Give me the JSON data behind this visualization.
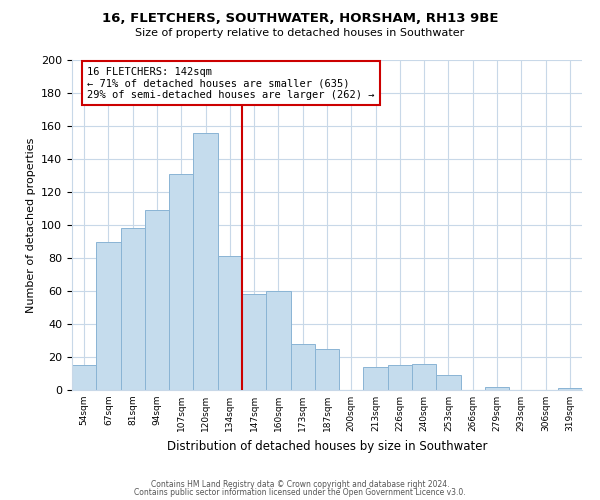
{
  "title": "16, FLETCHERS, SOUTHWATER, HORSHAM, RH13 9BE",
  "subtitle": "Size of property relative to detached houses in Southwater",
  "xlabel": "Distribution of detached houses by size in Southwater",
  "ylabel": "Number of detached properties",
  "bar_labels": [
    "54sqm",
    "67sqm",
    "81sqm",
    "94sqm",
    "107sqm",
    "120sqm",
    "134sqm",
    "147sqm",
    "160sqm",
    "173sqm",
    "187sqm",
    "200sqm",
    "213sqm",
    "226sqm",
    "240sqm",
    "253sqm",
    "266sqm",
    "279sqm",
    "293sqm",
    "306sqm",
    "319sqm"
  ],
  "bar_heights": [
    15,
    90,
    98,
    109,
    131,
    156,
    81,
    58,
    60,
    28,
    25,
    0,
    14,
    15,
    16,
    9,
    0,
    2,
    0,
    0,
    1
  ],
  "bar_color": "#c5dced",
  "bar_edge_color": "#8ab4d4",
  "vline_color": "#cc0000",
  "annotation_title": "16 FLETCHERS: 142sqm",
  "annotation_line1": "← 71% of detached houses are smaller (635)",
  "annotation_line2": "29% of semi-detached houses are larger (262) →",
  "annotation_box_color": "#ffffff",
  "annotation_box_edge": "#cc0000",
  "ylim": [
    0,
    200
  ],
  "yticks": [
    0,
    20,
    40,
    60,
    80,
    100,
    120,
    140,
    160,
    180,
    200
  ],
  "footer1": "Contains HM Land Registry data © Crown copyright and database right 2024.",
  "footer2": "Contains public sector information licensed under the Open Government Licence v3.0.",
  "bg_color": "#ffffff",
  "grid_color": "#c8d8e8"
}
